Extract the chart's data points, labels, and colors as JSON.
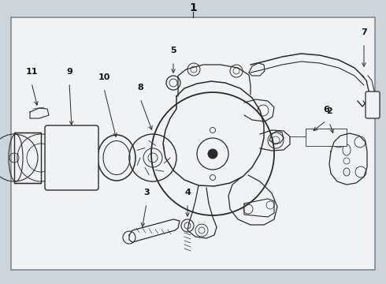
{
  "bg_color": "#cdd5dc",
  "inner_bg": "#f0f2f4",
  "line_color": "#2a2a2a",
  "border_color": "#888888",
  "label_color": "#111111",
  "figsize": [
    4.9,
    3.6
  ],
  "dpi": 100
}
